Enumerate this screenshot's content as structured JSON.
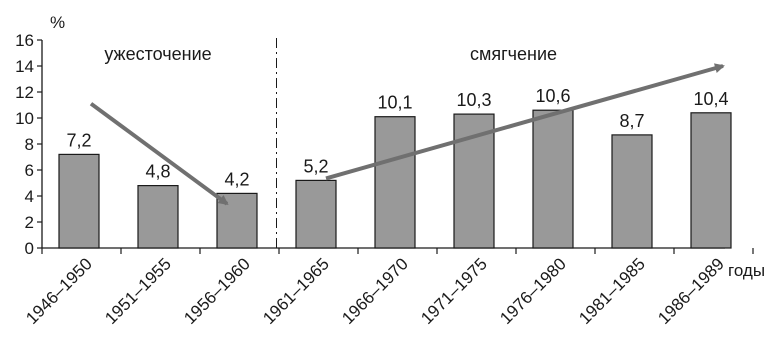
{
  "chart_data": {
    "type": "bar",
    "categories": [
      "1946–1950",
      "1951–1955",
      "1956–1960",
      "1961–1965",
      "1966–1970",
      "1971–1975",
      "1976–1980",
      "1981–1985",
      "1986–1989"
    ],
    "values": [
      7.2,
      4.8,
      4.2,
      5.2,
      10.1,
      10.3,
      10.6,
      8.7,
      10.4
    ],
    "value_labels": [
      "7,2",
      "4,8",
      "4,2",
      "5,2",
      "10,1",
      "10,3",
      "10,6",
      "8,7",
      "10,4"
    ],
    "ylabel": "%",
    "xlabel": "годы",
    "ylim": [
      0,
      16
    ],
    "yticks": [
      0,
      2,
      4,
      6,
      8,
      10,
      12,
      14,
      16
    ],
    "grid": false,
    "bar_color": "#999999",
    "bar_border_color": "#1a1a1a",
    "arrow_color": "#707070",
    "regions": [
      {
        "label": "ужесточение",
        "from_index": 0,
        "to_index": 2
      },
      {
        "label": "смягчение",
        "from_index": 3,
        "to_index": 8
      }
    ],
    "annotations": {
      "divider_style": "dash-dot",
      "trend_arrows": [
        {
          "from": {
            "category_index": 0,
            "value": 11.1
          },
          "to": {
            "category_index": 2,
            "value": 3.4
          }
        },
        {
          "from": {
            "category_index": 3,
            "value": 5.2
          },
          "to": {
            "category_index": 8,
            "value": 14.0
          }
        }
      ]
    }
  }
}
